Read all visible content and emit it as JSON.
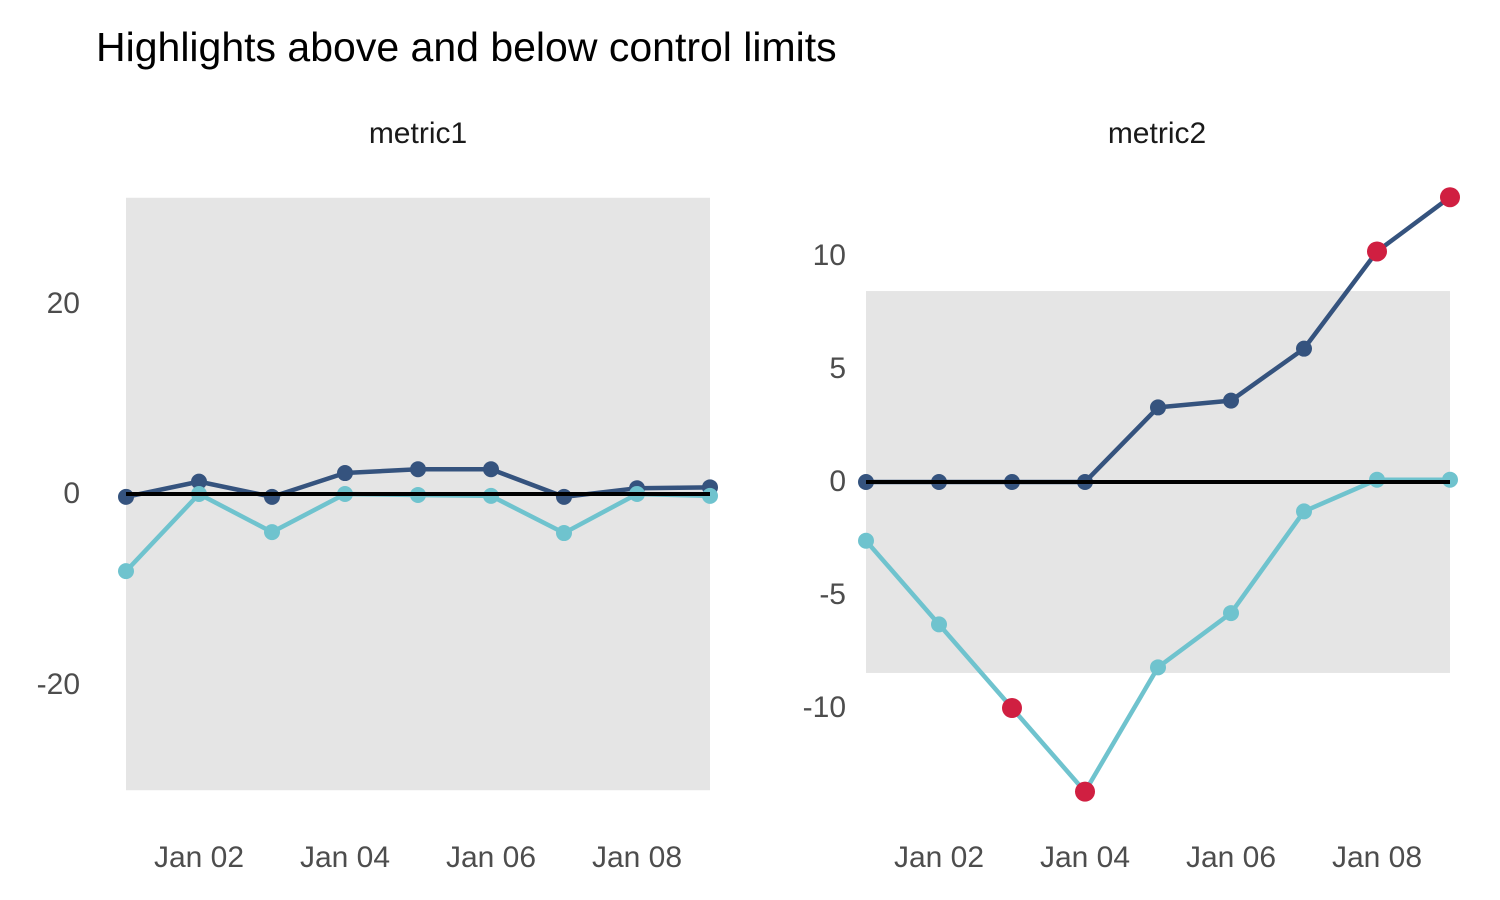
{
  "header": {
    "title": "Highlights above and below control limits"
  },
  "colors": {
    "band": "#e5e5e5",
    "center_line": "#000000",
    "series1": "#35537e",
    "series2": "#6fc3ce",
    "out_of_limits": "#d01f41",
    "axis_text": "#4d4d4d",
    "facet_text": "#1a1a1a"
  },
  "chart_data": [
    {
      "type": "line",
      "title": "metric1",
      "x": [
        "Jan 01",
        "Jan 02",
        "Jan 03",
        "Jan 04",
        "Jan 05",
        "Jan 06",
        "Jan 07",
        "Jan 08",
        "Jan 09"
      ],
      "x_ticks": [
        {
          "label": "Jan 02",
          "index": 1
        },
        {
          "label": "Jan 04",
          "index": 3
        },
        {
          "label": "Jan 06",
          "index": 5
        },
        {
          "label": "Jan 08",
          "index": 7
        }
      ],
      "y_ticks": [
        20,
        0,
        -20
      ],
      "ylim": [
        -33,
        33
      ],
      "grid": false,
      "legend": "none",
      "center_line": 0,
      "control_limits": {
        "lower": -31.1,
        "upper": 31.1
      },
      "series": [
        {
          "name": "metric1-series-dark",
          "color_key": "series1",
          "values": [
            -0.3,
            1.3,
            -0.3,
            2.2,
            2.6,
            2.6,
            -0.3,
            0.6,
            0.7
          ]
        },
        {
          "name": "metric1-series-light",
          "color_key": "series2",
          "values": [
            -8.1,
            0.0,
            -4.0,
            0.0,
            -0.1,
            -0.2,
            -4.1,
            0.0,
            -0.2
          ]
        }
      ]
    },
    {
      "type": "line",
      "title": "metric2",
      "x": [
        "Jan 01",
        "Jan 02",
        "Jan 03",
        "Jan 04",
        "Jan 05",
        "Jan 06",
        "Jan 07",
        "Jan 08",
        "Jan 09"
      ],
      "x_ticks": [
        {
          "label": "Jan 02",
          "index": 1
        },
        {
          "label": "Jan 04",
          "index": 3
        },
        {
          "label": "Jan 06",
          "index": 5
        },
        {
          "label": "Jan 08",
          "index": 7
        }
      ],
      "y_ticks": [
        10,
        5,
        0,
        -5,
        -10
      ],
      "ylim": [
        -14.5,
        13.5
      ],
      "grid": false,
      "legend": "none",
      "center_line": 0,
      "control_limits": {
        "lower": -8.45,
        "upper": 8.45
      },
      "series": [
        {
          "name": "metric2-series-dark",
          "color_key": "series1",
          "values": [
            0.0,
            0.0,
            0.0,
            0.0,
            3.3,
            3.6,
            5.9,
            10.2,
            12.6
          ]
        },
        {
          "name": "metric2-series-light",
          "color_key": "series2",
          "values": [
            -2.6,
            -6.3,
            -10.0,
            -13.7,
            -8.2,
            -5.8,
            -1.3,
            0.1,
            0.1
          ]
        }
      ]
    }
  ]
}
